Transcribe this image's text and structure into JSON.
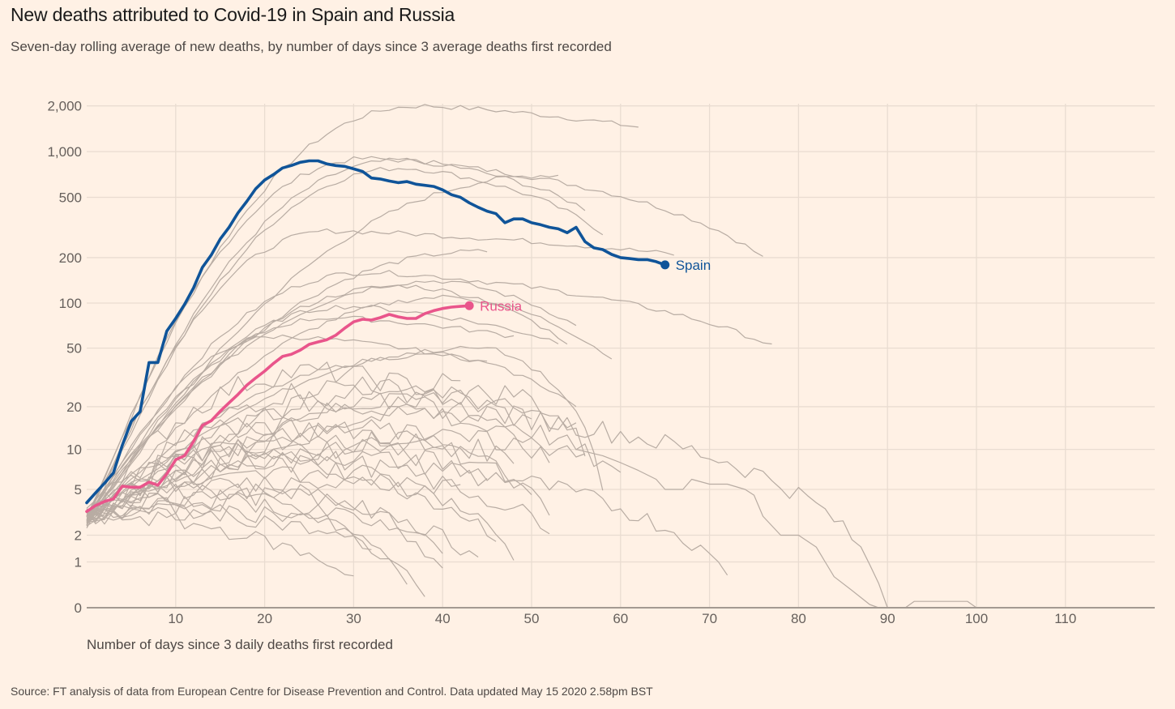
{
  "chart_data": {
    "type": "line",
    "title": "New deaths attributed to Covid-19 in Spain and Russia",
    "subtitle": "Seven-day rolling average of new deaths, by number of days since 3 average deaths first recorded",
    "xlabel": "Number of days since 3 daily deaths first recorded",
    "ylabel": "",
    "source": "Source: FT analysis of data from European Centre for Disease Prevention and Control. Data updated May 15 2020 2.58pm BST",
    "x_scale": "linear",
    "y_scale": "log(1+y)",
    "xlim": [
      0,
      120
    ],
    "ylim": [
      0,
      2300
    ],
    "grid": true,
    "x_ticks": [
      10,
      20,
      30,
      40,
      50,
      60,
      70,
      80,
      90,
      100,
      110
    ],
    "x_tick_labels": [
      "10",
      "20",
      "30",
      "40",
      "50",
      "60",
      "70",
      "80",
      "90",
      "100",
      "110"
    ],
    "y_ticks": [
      0,
      1,
      2,
      5,
      10,
      20,
      50,
      100,
      200,
      500,
      1000,
      2000
    ],
    "y_tick_labels": [
      "0",
      "1",
      "2",
      "5",
      "10",
      "20",
      "50",
      "100",
      "200",
      "500",
      "1,000",
      "2,000"
    ],
    "highlight_series": [
      {
        "name": "Spain",
        "label": "Spain",
        "color": "#0f5499",
        "values": [
          3.9,
          4.7,
          5.6,
          6.7,
          10.7,
          15.8,
          18.5,
          40,
          40,
          65,
          79,
          98,
          126,
          172,
          208,
          265,
          317,
          395,
          470,
          570,
          650,
          707,
          780,
          810,
          850,
          870,
          870,
          830,
          810,
          800,
          770,
          740,
          670,
          660,
          640,
          625,
          635,
          610,
          600,
          590,
          560,
          520,
          500,
          460,
          430,
          405,
          390,
          340,
          360,
          360,
          340,
          330,
          317,
          310,
          292,
          317,
          255,
          232,
          226,
          210,
          200,
          197,
          194,
          194,
          188,
          179
        ]
      },
      {
        "name": "Russia",
        "label": "Russia",
        "color": "#e9558b",
        "values": [
          3.3,
          3.7,
          4.0,
          4.2,
          5.3,
          5.2,
          5.2,
          5.7,
          5.4,
          6.6,
          8.4,
          9.0,
          11.4,
          14.8,
          16,
          18.6,
          21.3,
          24.3,
          28.1,
          31.5,
          35,
          39.5,
          44,
          45.5,
          48.5,
          53,
          55,
          57,
          61,
          68,
          75,
          78,
          77,
          80,
          84,
          81,
          79,
          79,
          85,
          89,
          92,
          94,
          95,
          96
        ]
      }
    ],
    "background_series_color": "#b8aca3",
    "background_series": [
      {
        "name": "other-1",
        "peak": 2000,
        "peak_day": 38,
        "end_day": 62,
        "end": 1450,
        "rise": 18
      },
      {
        "name": "other-2",
        "peak": 900,
        "peak_day": 32,
        "end_day": 76,
        "end": 200,
        "rise": 16
      },
      {
        "name": "other-3",
        "peak": 880,
        "peak_day": 36,
        "end_day": 56,
        "end": 420,
        "rise": 17
      },
      {
        "name": "other-4",
        "peak": 780,
        "peak_day": 36,
        "end_day": 58,
        "end": 290,
        "rise": 18
      },
      {
        "name": "other-5",
        "peak": 700,
        "peak_day": 53,
        "end_day": 53,
        "end": 700,
        "rise": 20
      },
      {
        "name": "other-6",
        "peak": 300,
        "peak_day": 28,
        "end_day": 66,
        "end": 210,
        "rise": 16
      },
      {
        "name": "other-7",
        "peak": 220,
        "peak_day": 45,
        "end_day": 45,
        "end": 220,
        "rise": 20
      },
      {
        "name": "other-8",
        "peak": 160,
        "peak_day": 32,
        "end_day": 77,
        "end": 52,
        "rise": 16
      },
      {
        "name": "other-9",
        "peak": 140,
        "peak_day": 40,
        "end_day": 55,
        "end": 70,
        "rise": 16
      },
      {
        "name": "other-10",
        "peak": 130,
        "peak_day": 36,
        "end_day": 59,
        "end": 42,
        "rise": 16
      },
      {
        "name": "other-11",
        "peak": 110,
        "peak_day": 42,
        "end_day": 54,
        "end": 52,
        "rise": 16
      },
      {
        "name": "other-12",
        "peak": 95,
        "peak_day": 30,
        "end_day": 53,
        "end": 55,
        "rise": 14
      },
      {
        "name": "other-13",
        "peak": 80,
        "peak_day": 28,
        "end_day": 48,
        "end": 60,
        "rise": 14
      },
      {
        "name": "other-14",
        "peak": 60,
        "peak_day": 22,
        "end_day": 45,
        "end": 40,
        "rise": 14
      },
      {
        "name": "other-15",
        "peak": 45,
        "peak_day": 40,
        "end_day": 55,
        "end": 20,
        "rise": 13
      },
      {
        "name": "other-16",
        "peak": 35,
        "peak_day": 26,
        "end_day": 50,
        "end": 15,
        "rise": 12
      },
      {
        "name": "other-17",
        "peak": 30,
        "peak_day": 40,
        "end_day": 42,
        "end": 30,
        "rise": 12
      },
      {
        "name": "other-18",
        "peak": 28,
        "peak_day": 30,
        "end_day": 55,
        "end": 14,
        "rise": 12
      },
      {
        "name": "other-19",
        "peak": 25,
        "peak_day": 48,
        "end_day": 56,
        "end": 10,
        "rise": 11
      },
      {
        "name": "other-20",
        "peak": 22,
        "peak_day": 30,
        "end_day": 90,
        "end": 0,
        "rise": 11
      },
      {
        "name": "other-21",
        "peak": 20,
        "peak_day": 35,
        "end_day": 52,
        "end": 8,
        "rise": 10
      },
      {
        "name": "other-22",
        "peak": 18,
        "peak_day": 42,
        "end_day": 60,
        "end": 6,
        "rise": 10
      },
      {
        "name": "other-23",
        "peak": 15,
        "peak_day": 20,
        "end_day": 48,
        "end": 9,
        "rise": 9
      },
      {
        "name": "other-24",
        "peak": 14,
        "peak_day": 33,
        "end_day": 52,
        "end": 3,
        "rise": 9
      },
      {
        "name": "other-25",
        "peak": 12,
        "peak_day": 25,
        "end_day": 45,
        "end": 6,
        "rise": 8
      },
      {
        "name": "other-26",
        "peak": 11,
        "peak_day": 38,
        "end_day": 50,
        "end": 4,
        "rise": 8
      },
      {
        "name": "other-27",
        "peak": 10,
        "peak_day": 18,
        "end_day": 42,
        "end": 5,
        "rise": 7
      },
      {
        "name": "other-28",
        "peak": 9,
        "peak_day": 28,
        "end_day": 72,
        "end": 0.7,
        "rise": 7
      },
      {
        "name": "other-29",
        "peak": 8,
        "peak_day": 22,
        "end_day": 46,
        "end": 2,
        "rise": 6
      },
      {
        "name": "other-30",
        "peak": 7,
        "peak_day": 30,
        "end_day": 52,
        "end": 2.5,
        "rise": 6
      },
      {
        "name": "other-31",
        "peak": 6,
        "peak_day": 15,
        "end_day": 40,
        "end": 1.5,
        "rise": 5
      },
      {
        "name": "other-32",
        "peak": 5.5,
        "peak_day": 35,
        "end_day": 48,
        "end": 1.2,
        "rise": 5
      },
      {
        "name": "other-33",
        "peak": 5,
        "peak_day": 12,
        "end_day": 38,
        "end": 0.2,
        "rise": 4
      },
      {
        "name": "other-34",
        "peak": 4.5,
        "peak_day": 25,
        "end_day": 44,
        "end": 1,
        "rise": 4
      },
      {
        "name": "other-35",
        "peak": 4,
        "peak_day": 18,
        "end_day": 36,
        "end": 0.5,
        "rise": 4
      },
      {
        "name": "other-36",
        "peak": 3.5,
        "peak_day": 10,
        "end_day": 32,
        "end": 1.5,
        "rise": 3
      },
      {
        "name": "other-37",
        "peak": 3.2,
        "peak_day": 28,
        "end_day": 40,
        "end": 0.8,
        "rise": 3
      },
      {
        "name": "other-38",
        "peak": 3,
        "peak_day": 5,
        "end_day": 30,
        "end": 0.6,
        "rise": 3
      },
      {
        "name": "other-39",
        "peak": 50,
        "peak_day": 45,
        "end_day": 58,
        "end": 5,
        "rise": 14
      },
      {
        "name": "other-40",
        "peak": 12,
        "peak_day": 40,
        "end_day": 56,
        "end": 10,
        "rise": 9
      }
    ],
    "extra_series": [
      {
        "name": "other-tail",
        "values_sparse": [
          [
            55,
            10
          ],
          [
            58,
            9
          ],
          [
            60,
            8
          ],
          [
            62,
            7
          ],
          [
            64,
            6
          ],
          [
            65,
            5
          ],
          [
            67,
            5
          ],
          [
            68,
            6
          ],
          [
            70,
            5.5
          ],
          [
            72,
            5.5
          ],
          [
            74,
            5
          ],
          [
            75,
            4.5
          ],
          [
            76,
            3
          ],
          [
            78,
            2
          ],
          [
            80,
            2
          ],
          [
            82,
            1.5
          ],
          [
            83,
            1
          ],
          [
            84,
            0.6
          ],
          [
            86,
            0.3
          ],
          [
            88,
            0.05
          ],
          [
            89,
            0
          ],
          [
            92,
            0
          ],
          [
            93,
            0.1
          ],
          [
            99,
            0.1
          ],
          [
            100,
            0
          ]
        ]
      }
    ]
  }
}
